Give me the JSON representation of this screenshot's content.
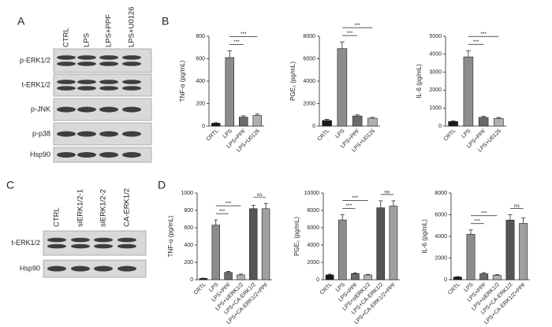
{
  "panel_labels": [
    "A",
    "B",
    "C",
    "D"
  ],
  "blots": [
    {
      "lanes": [
        "CTRL",
        "LPS",
        "LPS+PPF",
        "LPS+U0126"
      ],
      "rows": [
        "p-ERK1/2",
        "t-ERK1/2",
        "p-JNK",
        "p-p38",
        "Hsp90"
      ]
    },
    {
      "lanes": [
        "CTRL",
        "siERK1/2-1",
        "siERK1/2-2",
        "CA-ERK1/2"
      ],
      "rows": [
        "t-ERK1/2",
        "Hsp90"
      ]
    }
  ],
  "chart_data": [
    {
      "type": "bar",
      "y_label": "TNF-α (pg/mL)",
      "categories": [
        "CRTL",
        "LPS",
        "LPS+PPF",
        "LPS+U0126"
      ],
      "values": [
        25,
        610,
        80,
        95
      ],
      "errors": [
        5,
        60,
        12,
        12
      ],
      "colors": [
        "#1a1a1a",
        "#8c8c8c",
        "#6a6a6a",
        "#b0b0b0"
      ],
      "ylim": [
        0,
        800
      ],
      "yticks": [
        0,
        200,
        400,
        600,
        800
      ],
      "annotations": [
        {
          "from": "LPS",
          "to": "LPS+PPF",
          "label": "***"
        },
        {
          "from": "LPS",
          "to": "LPS+U0126",
          "label": "***"
        }
      ]
    },
    {
      "type": "bar",
      "y_label": "PGE₂ (pg/mL)",
      "categories": [
        "CRTL",
        "LPS",
        "LPS+PPF",
        "LPS+U0126"
      ],
      "values": [
        500,
        6900,
        900,
        700
      ],
      "errors": [
        100,
        600,
        100,
        80
      ],
      "colors": [
        "#1a1a1a",
        "#8c8c8c",
        "#6a6a6a",
        "#b0b0b0"
      ],
      "ylim": [
        0,
        8000
      ],
      "yticks": [
        0,
        2000,
        4000,
        6000,
        8000
      ],
      "annotations": [
        {
          "from": "LPS",
          "to": "LPS+PPF",
          "label": "***"
        },
        {
          "from": "LPS",
          "to": "LPS+U0126",
          "label": "***"
        }
      ]
    },
    {
      "type": "bar",
      "y_label": "IL-6 (pg/mL)",
      "categories": [
        "CRTL",
        "LPS",
        "LPS+PPF",
        "LPS+U0126"
      ],
      "values": [
        250,
        3850,
        480,
        420
      ],
      "errors": [
        40,
        350,
        60,
        60
      ],
      "colors": [
        "#1a1a1a",
        "#8c8c8c",
        "#6a6a6a",
        "#b0b0b0"
      ],
      "ylim": [
        0,
        5000
      ],
      "yticks": [
        0,
        1000,
        2000,
        3000,
        4000,
        5000
      ],
      "annotations": [
        {
          "from": "LPS",
          "to": "LPS+PPF",
          "label": "***"
        },
        {
          "from": "LPS",
          "to": "LPS+U0126",
          "label": "***"
        }
      ]
    },
    {
      "type": "bar",
      "y_label": "TNF-α (pg/mL)",
      "categories": [
        "CRTL",
        "LPS",
        "LPS+PPF",
        "LPS+siERK1/2",
        "LPS+CA-ERK1/2",
        "LPS+CA-ERK1/2+PPF"
      ],
      "values": [
        15,
        630,
        85,
        55,
        820,
        820
      ],
      "errors": [
        3,
        60,
        10,
        10,
        40,
        60
      ],
      "colors": [
        "#1a1a1a",
        "#8c8c8c",
        "#6a6a6a",
        "#b0b0b0",
        "#555555",
        "#a0a0a0"
      ],
      "ylim": [
        0,
        1000
      ],
      "yticks": [
        0,
        200,
        400,
        600,
        800,
        1000
      ],
      "annotations": [
        {
          "from": "LPS",
          "to": "LPS+PPF",
          "label": "***"
        },
        {
          "from": "LPS",
          "to": "LPS+siERK1/2",
          "label": "***"
        },
        {
          "from": "LPS+CA-ERK1/2",
          "to": "LPS+CA-ERK1/2+PPF",
          "label": "ns"
        }
      ]
    },
    {
      "type": "bar",
      "y_label": "PGE₂ (pg/mL)",
      "categories": [
        "CRTL",
        "LPS",
        "LPS+PPF",
        "LPS+siERK1/2",
        "LPS+CA-ERK1/2",
        "LPS+CA-ERK1/2+PPF"
      ],
      "values": [
        550,
        6900,
        700,
        550,
        8300,
        8500
      ],
      "errors": [
        80,
        600,
        80,
        60,
        800,
        600
      ],
      "colors": [
        "#1a1a1a",
        "#8c8c8c",
        "#6a6a6a",
        "#b0b0b0",
        "#555555",
        "#a0a0a0"
      ],
      "ylim": [
        0,
        10000
      ],
      "yticks": [
        0,
        2000,
        4000,
        6000,
        8000,
        10000
      ],
      "annotations": [
        {
          "from": "LPS",
          "to": "LPS+PPF",
          "label": "***"
        },
        {
          "from": "LPS",
          "to": "LPS+siERK1/2",
          "label": "***"
        },
        {
          "from": "LPS+CA-ERK1/2",
          "to": "LPS+CA-ERK1/2+PPF",
          "label": "ns"
        }
      ]
    },
    {
      "type": "bar",
      "y_label": "IL-6 (pg/mL)",
      "categories": [
        "CRTL",
        "LPS",
        "LPS+PPF",
        "LPS+siERK1/2",
        "LPS+CA-ERK1/2",
        "LPS+CA-ERK1/2+PPF"
      ],
      "values": [
        250,
        4200,
        550,
        420,
        5500,
        5200
      ],
      "errors": [
        40,
        400,
        100,
        60,
        500,
        500
      ],
      "colors": [
        "#1a1a1a",
        "#8c8c8c",
        "#6a6a6a",
        "#b0b0b0",
        "#555555",
        "#a0a0a0"
      ],
      "ylim": [
        0,
        8000
      ],
      "yticks": [
        0,
        2000,
        4000,
        6000,
        8000
      ],
      "annotations": [
        {
          "from": "LPS",
          "to": "LPS+PPF",
          "label": "***"
        },
        {
          "from": "LPS",
          "to": "LPS+siERK1/2",
          "label": "***"
        },
        {
          "from": "LPS+CA-ERK1/2",
          "to": "LPS+CA-ERK1/2+PPF",
          "label": "ns"
        }
      ]
    }
  ]
}
